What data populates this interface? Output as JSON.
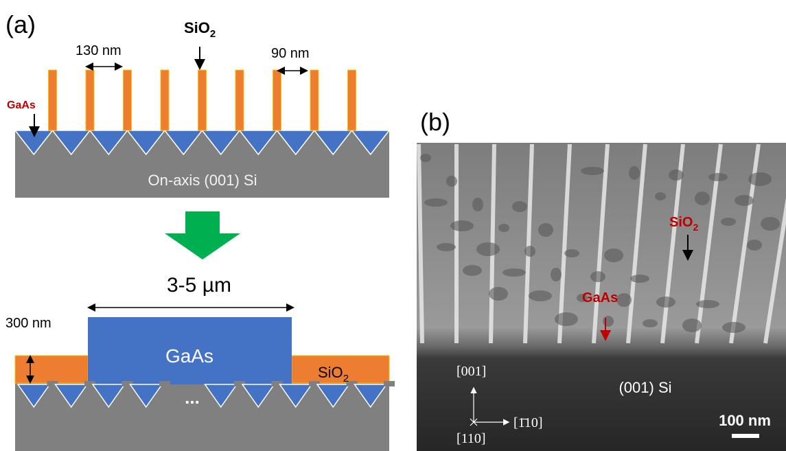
{
  "panel_a": {
    "label": "(a)",
    "top": {
      "oxide_label": {
        "base": "SiO",
        "sub": "2"
      },
      "wide_gap": "130 nm",
      "narrow_gap": "90 nm",
      "seed_label": "GaAs",
      "substrate_label": "On-axis (001) Si"
    },
    "bottom": {
      "width_label": "3-5 µm",
      "thickness_label": "300 nm",
      "layer_label": "GaAs",
      "oxide_label": {
        "base": "SiO",
        "sub": "2"
      },
      "ellipsis": "..."
    }
  },
  "panel_b": {
    "label": "(b)",
    "oxide_label": {
      "base": "SiO",
      "sub": "2"
    },
    "seed_label": "GaAs",
    "substrate_label": "(001) Si",
    "axis_up": "[001]",
    "axis_right": "[1̄10]",
    "axis_out": "[110]",
    "scale_bar": "100 nm"
  }
}
